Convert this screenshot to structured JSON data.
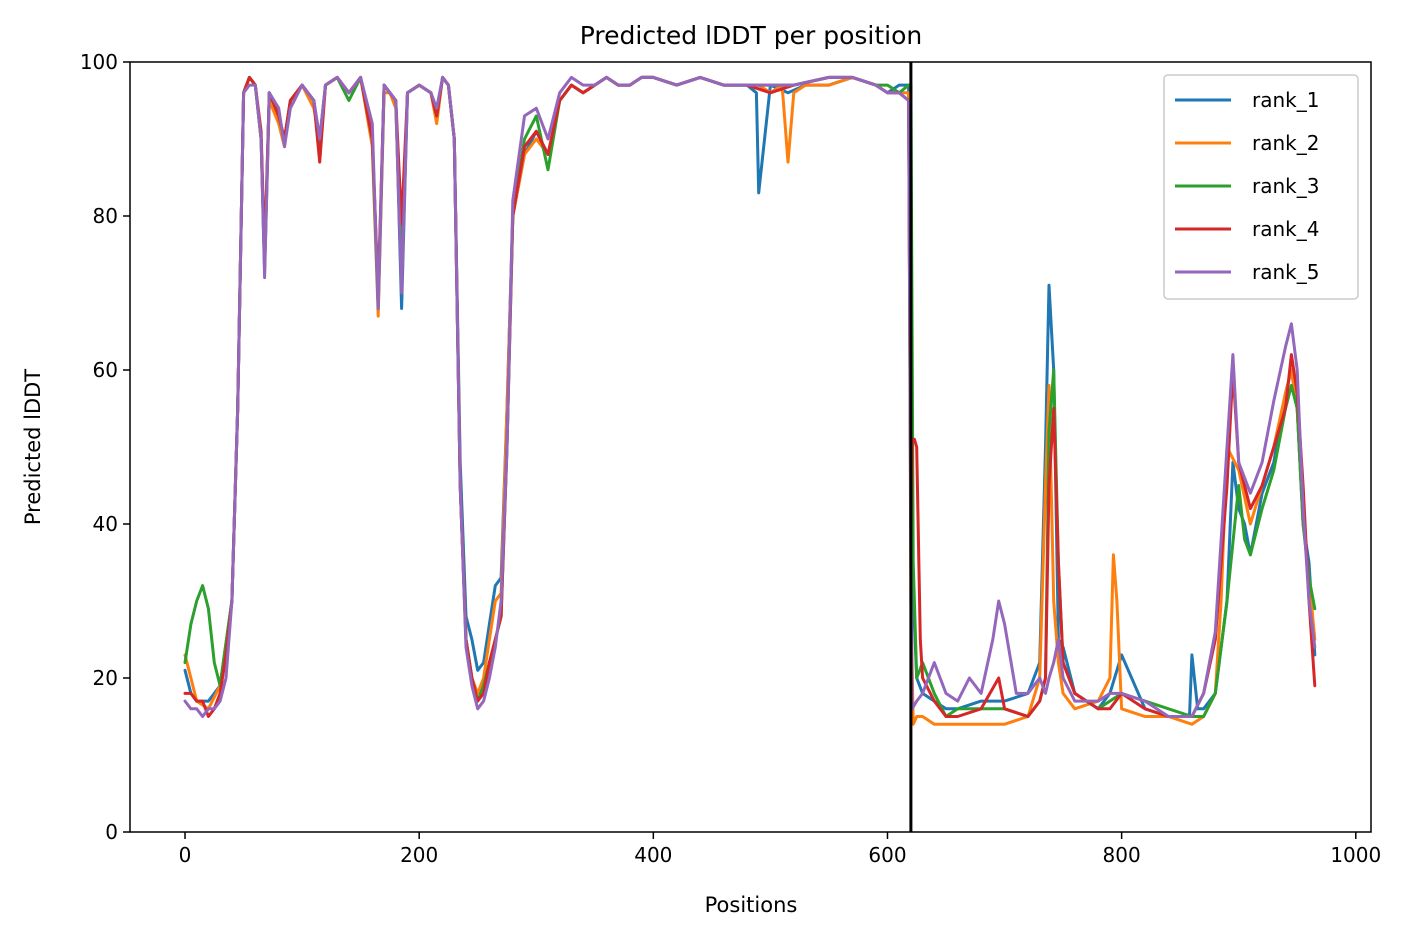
{
  "chart_data": {
    "type": "line",
    "title": "Predicted lDDT per position",
    "xlabel": "Positions",
    "ylabel": "Predicted lDDT",
    "xlim": [
      -47,
      1013
    ],
    "ylim": [
      0,
      100
    ],
    "xticks": [
      0,
      200,
      400,
      600,
      800,
      1000
    ],
    "yticks": [
      0,
      20,
      40,
      60,
      80,
      100
    ],
    "grid": false,
    "legend_position": "top-right",
    "chain_break_x": 620,
    "series": [
      {
        "name": "rank_1",
        "color": "#1f77b4",
        "x": [
          0,
          5,
          10,
          20,
          30,
          40,
          45,
          50,
          55,
          60,
          65,
          68,
          72,
          80,
          85,
          90,
          100,
          110,
          115,
          120,
          130,
          140,
          150,
          160,
          165,
          170,
          175,
          180,
          185,
          190,
          200,
          210,
          215,
          220,
          225,
          230,
          235,
          240,
          245,
          250,
          255,
          260,
          265,
          270,
          275,
          280,
          290,
          300,
          310,
          320,
          330,
          340,
          350,
          360,
          370,
          380,
          390,
          400,
          420,
          440,
          460,
          480,
          488,
          490,
          500,
          515,
          530,
          550,
          570,
          590,
          600,
          610,
          618,
          620,
          621,
          625,
          630,
          640,
          650,
          660,
          680,
          700,
          720,
          730,
          735,
          738,
          742,
          746,
          750,
          760,
          780,
          790,
          800,
          820,
          840,
          858,
          860,
          865,
          870,
          880,
          890,
          895,
          900,
          905,
          910,
          920,
          930,
          940,
          945,
          950,
          955,
          960,
          965
        ],
        "values": [
          21,
          18,
          17,
          17,
          19,
          30,
          55,
          96,
          98,
          97,
          90,
          74,
          96,
          93,
          90,
          95,
          97,
          95,
          90,
          97,
          98,
          96,
          98,
          90,
          69,
          97,
          96,
          95,
          68,
          96,
          97,
          96,
          93,
          98,
          97,
          90,
          48,
          28,
          25,
          21,
          22,
          27,
          32,
          33,
          55,
          80,
          88,
          91,
          88,
          95,
          97,
          96,
          97,
          98,
          97,
          97,
          98,
          98,
          97,
          98,
          97,
          97,
          96,
          83,
          97,
          96,
          97,
          97,
          98,
          97,
          96,
          97,
          97,
          40,
          34,
          20,
          18,
          17,
          16,
          16,
          17,
          17,
          18,
          22,
          50,
          71,
          60,
          25,
          24,
          18,
          16,
          18,
          23,
          16,
          15,
          15,
          23,
          16,
          16,
          18,
          30,
          48,
          42,
          40,
          36,
          44,
          48,
          57,
          60,
          55,
          40,
          35,
          23
        ]
      },
      {
        "name": "rank_2",
        "color": "#ff7f0e",
        "x": [
          0,
          5,
          10,
          20,
          30,
          40,
          45,
          50,
          55,
          60,
          65,
          68,
          72,
          80,
          85,
          90,
          100,
          110,
          115,
          120,
          130,
          140,
          150,
          160,
          165,
          170,
          175,
          180,
          185,
          190,
          200,
          210,
          215,
          220,
          225,
          230,
          235,
          240,
          245,
          250,
          255,
          260,
          265,
          270,
          275,
          280,
          290,
          300,
          310,
          320,
          330,
          340,
          350,
          360,
          370,
          380,
          390,
          400,
          420,
          440,
          460,
          480,
          490,
          500,
          510,
          515,
          520,
          530,
          550,
          570,
          590,
          600,
          610,
          618,
          620,
          622,
          625,
          630,
          640,
          650,
          660,
          680,
          700,
          720,
          730,
          735,
          738,
          742,
          746,
          750,
          760,
          780,
          790,
          793,
          796,
          800,
          820,
          840,
          860,
          870,
          880,
          885,
          890,
          900,
          910,
          920,
          930,
          940,
          945,
          950,
          955,
          960,
          965
        ],
        "values": [
          23,
          20,
          17,
          16,
          19,
          30,
          55,
          96,
          98,
          97,
          90,
          73,
          95,
          92,
          89,
          95,
          97,
          94,
          90,
          97,
          98,
          96,
          98,
          89,
          67,
          96,
          96,
          94,
          72,
          96,
          97,
          96,
          92,
          98,
          97,
          90,
          45,
          25,
          20,
          18,
          20,
          25,
          30,
          31,
          55,
          80,
          88,
          90,
          88,
          95,
          97,
          96,
          97,
          98,
          97,
          97,
          98,
          98,
          97,
          98,
          97,
          97,
          97,
          96,
          97,
          87,
          96,
          97,
          97,
          98,
          97,
          96,
          96,
          96,
          30,
          14,
          15,
          15,
          14,
          14,
          14,
          14,
          14,
          15,
          20,
          45,
          58,
          30,
          22,
          18,
          16,
          17,
          20,
          36,
          30,
          16,
          15,
          15,
          14,
          15,
          18,
          30,
          50,
          47,
          40,
          45,
          50,
          57,
          60,
          55,
          40,
          33,
          25
        ]
      },
      {
        "name": "rank_3",
        "color": "#2ca02c",
        "x": [
          0,
          5,
          10,
          15,
          20,
          25,
          30,
          40,
          45,
          50,
          55,
          60,
          65,
          68,
          72,
          80,
          85,
          90,
          100,
          110,
          115,
          120,
          130,
          140,
          150,
          160,
          165,
          170,
          175,
          180,
          185,
          190,
          200,
          210,
          215,
          220,
          225,
          230,
          235,
          240,
          245,
          250,
          255,
          260,
          265,
          270,
          275,
          280,
          290,
          300,
          310,
          320,
          330,
          340,
          350,
          360,
          370,
          380,
          390,
          400,
          420,
          440,
          460,
          480,
          500,
          520,
          550,
          570,
          590,
          600,
          610,
          618,
          620,
          622,
          625,
          630,
          640,
          650,
          660,
          680,
          700,
          720,
          730,
          735,
          738,
          742,
          746,
          750,
          760,
          780,
          790,
          800,
          820,
          840,
          860,
          870,
          880,
          890,
          900,
          905,
          910,
          920,
          930,
          940,
          945,
          950,
          955,
          960,
          965
        ],
        "values": [
          22,
          27,
          30,
          32,
          29,
          22,
          19,
          30,
          55,
          96,
          98,
          97,
          90,
          73,
          96,
          93,
          90,
          95,
          97,
          95,
          89,
          97,
          98,
          95,
          98,
          90,
          68,
          97,
          96,
          95,
          73,
          96,
          97,
          96,
          93,
          98,
          97,
          90,
          45,
          25,
          20,
          17,
          19,
          22,
          25,
          28,
          50,
          80,
          90,
          93,
          86,
          95,
          97,
          96,
          97,
          98,
          97,
          97,
          98,
          98,
          97,
          98,
          97,
          97,
          97,
          97,
          98,
          98,
          97,
          97,
          96,
          97,
          97,
          35,
          20,
          22,
          18,
          15,
          16,
          16,
          16,
          15,
          17,
          20,
          52,
          60,
          35,
          22,
          18,
          16,
          17,
          18,
          17,
          16,
          15,
          15,
          18,
          30,
          45,
          38,
          36,
          42,
          47,
          55,
          58,
          55,
          40,
          33,
          29
        ]
      },
      {
        "name": "rank_4",
        "color": "#d62728",
        "x": [
          0,
          5,
          10,
          15,
          20,
          25,
          30,
          35,
          40,
          45,
          50,
          55,
          60,
          65,
          68,
          72,
          80,
          85,
          90,
          100,
          110,
          115,
          120,
          130,
          140,
          150,
          160,
          165,
          170,
          175,
          180,
          185,
          190,
          200,
          210,
          215,
          220,
          225,
          230,
          235,
          240,
          245,
          250,
          255,
          260,
          265,
          270,
          275,
          280,
          290,
          300,
          310,
          320,
          330,
          340,
          350,
          360,
          370,
          380,
          390,
          400,
          420,
          440,
          460,
          480,
          500,
          520,
          550,
          570,
          590,
          600,
          610,
          618,
          620,
          621,
          623,
          625,
          628,
          630,
          640,
          650,
          660,
          680,
          695,
          700,
          720,
          730,
          735,
          738,
          742,
          746,
          750,
          760,
          780,
          790,
          800,
          820,
          840,
          860,
          870,
          880,
          890,
          895,
          900,
          910,
          920,
          930,
          940,
          945,
          950,
          955,
          960,
          965
        ],
        "values": [
          18,
          18,
          17,
          17,
          15,
          16,
          18,
          23,
          30,
          55,
          96,
          98,
          97,
          91,
          75,
          96,
          93,
          90,
          95,
          97,
          95,
          87,
          97,
          98,
          96,
          98,
          90,
          70,
          97,
          96,
          95,
          79,
          96,
          97,
          96,
          93,
          98,
          97,
          90,
          45,
          25,
          20,
          17,
          18,
          22,
          25,
          28,
          50,
          80,
          89,
          91,
          88,
          95,
          97,
          96,
          97,
          98,
          97,
          97,
          98,
          98,
          97,
          98,
          97,
          97,
          96,
          97,
          98,
          98,
          97,
          96,
          96,
          95,
          38,
          51,
          51,
          50,
          25,
          20,
          17,
          15,
          15,
          16,
          20,
          16,
          15,
          17,
          20,
          45,
          55,
          35,
          22,
          18,
          16,
          16,
          18,
          16,
          15,
          15,
          18,
          25,
          45,
          60,
          48,
          42,
          45,
          50,
          55,
          62,
          57,
          45,
          30,
          19
        ]
      },
      {
        "name": "rank_5",
        "color": "#9467bd",
        "x": [
          0,
          5,
          10,
          15,
          20,
          25,
          30,
          35,
          40,
          45,
          50,
          55,
          60,
          65,
          68,
          72,
          80,
          85,
          90,
          100,
          110,
          115,
          120,
          130,
          140,
          150,
          160,
          165,
          170,
          175,
          180,
          185,
          190,
          200,
          210,
          215,
          220,
          225,
          230,
          235,
          240,
          245,
          250,
          255,
          260,
          265,
          270,
          275,
          280,
          290,
          300,
          310,
          320,
          330,
          340,
          350,
          360,
          370,
          380,
          390,
          400,
          420,
          440,
          460,
          480,
          500,
          520,
          550,
          570,
          590,
          600,
          610,
          618,
          620,
          621,
          625,
          630,
          640,
          650,
          660,
          670,
          680,
          690,
          695,
          700,
          710,
          720,
          730,
          735,
          738,
          742,
          746,
          750,
          760,
          780,
          790,
          800,
          820,
          840,
          860,
          870,
          880,
          890,
          895,
          900,
          910,
          920,
          930,
          940,
          945,
          950,
          955,
          960,
          965
        ],
        "values": [
          17,
          16,
          16,
          15,
          16,
          16,
          17,
          20,
          30,
          55,
          96,
          97,
          97,
          90,
          72,
          96,
          94,
          89,
          94,
          97,
          95,
          90,
          97,
          98,
          96,
          98,
          92,
          68,
          97,
          96,
          95,
          70,
          96,
          97,
          96,
          94,
          98,
          97,
          90,
          45,
          24,
          19,
          16,
          17,
          20,
          24,
          30,
          50,
          82,
          93,
          94,
          90,
          96,
          98,
          97,
          97,
          98,
          97,
          97,
          98,
          98,
          97,
          98,
          97,
          97,
          97,
          97,
          98,
          98,
          97,
          96,
          96,
          95,
          35,
          16,
          17,
          18,
          22,
          18,
          17,
          20,
          18,
          25,
          30,
          27,
          18,
          18,
          20,
          18,
          20,
          22,
          25,
          20,
          17,
          17,
          18,
          18,
          17,
          15,
          15,
          18,
          26,
          50,
          62,
          48,
          44,
          48,
          56,
          63,
          66,
          60,
          42,
          30,
          24
        ]
      }
    ]
  }
}
